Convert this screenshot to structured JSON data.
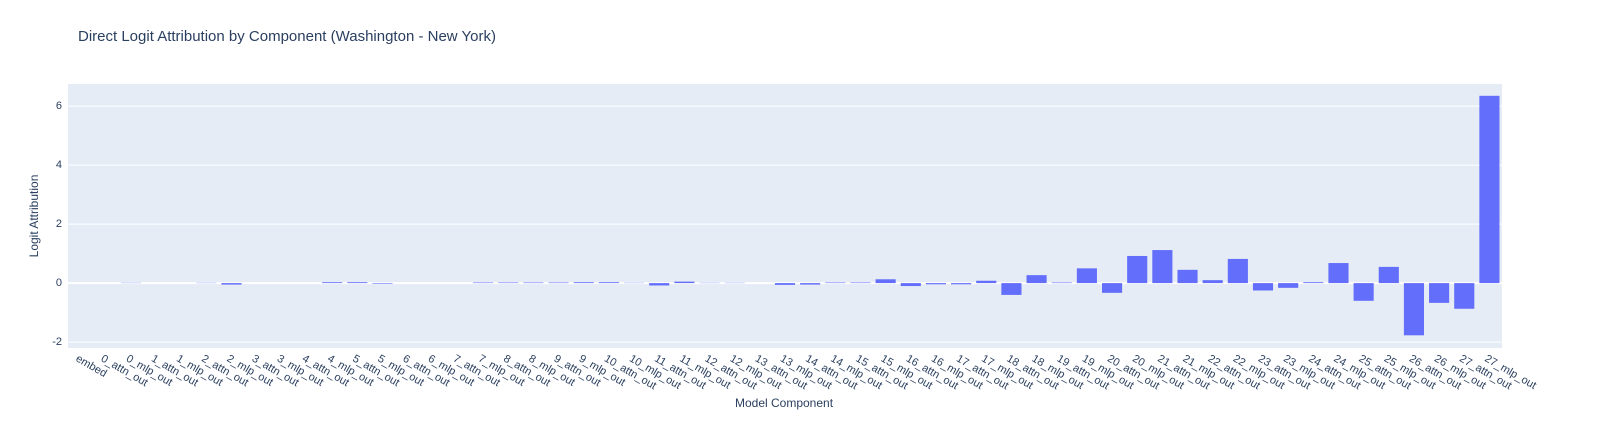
{
  "chart_data": {
    "type": "bar",
    "title": "Direct Logit Attribution by Component (Washington - New York)",
    "x_label": "Model Component",
    "y_label": "Logit Attribution",
    "categories": [
      "embed",
      "0_attn_out",
      "0_mlp_out",
      "1_attn_out",
      "1_mlp_out",
      "2_attn_out",
      "2_mlp_out",
      "3_attn_out",
      "3_mlp_out",
      "4_attn_out",
      "4_mlp_out",
      "5_attn_out",
      "5_mlp_out",
      "6_attn_out",
      "6_mlp_out",
      "7_attn_out",
      "7_mlp_out",
      "8_attn_out",
      "8_mlp_out",
      "9_attn_out",
      "9_mlp_out",
      "10_attn_out",
      "10_mlp_out",
      "11_attn_out",
      "11_mlp_out",
      "12_attn_out",
      "12_mlp_out",
      "13_attn_out",
      "13_mlp_out",
      "14_attn_out",
      "14_mlp_out",
      "15_attn_out",
      "15_mlp_out",
      "16_attn_out",
      "16_mlp_out",
      "17_attn_out",
      "17_mlp_out",
      "18_attn_out",
      "18_mlp_out",
      "19_attn_out",
      "19_mlp_out",
      "20_attn_out",
      "20_mlp_out",
      "21_attn_out",
      "21_mlp_out",
      "22_attn_out",
      "22_mlp_out",
      "23_attn_out",
      "23_mlp_out",
      "24_attn_out",
      "24_mlp_out",
      "25_attn_out",
      "25_mlp_out",
      "26_attn_out",
      "26_mlp_out",
      "27_attn_out",
      "27_mlp_out"
    ],
    "values": [
      0,
      0,
      0.01,
      0,
      0,
      0.01,
      -0.05,
      0,
      0,
      0,
      0.03,
      0.03,
      -0.02,
      0,
      0,
      0,
      0.02,
      0.02,
      0.02,
      0.02,
      0.03,
      0.03,
      0.01,
      -0.08,
      0.05,
      0.01,
      0.01,
      0,
      -0.06,
      -0.05,
      0.02,
      0.02,
      0.13,
      -0.1,
      -0.04,
      -0.04,
      0.08,
      -0.4,
      0.27,
      0.02,
      0.5,
      -0.33,
      0.92,
      1.12,
      0.45,
      0.1,
      0.82,
      -0.25,
      -0.16,
      0.03,
      0.68,
      -0.6,
      0.55,
      -1.77,
      -0.67,
      -0.87,
      6.35
    ],
    "color": "#636efa",
    "ylim": [
      -2.2,
      6.75
    ],
    "yticks": [
      -2,
      0,
      2,
      4,
      6
    ],
    "grid": true
  }
}
